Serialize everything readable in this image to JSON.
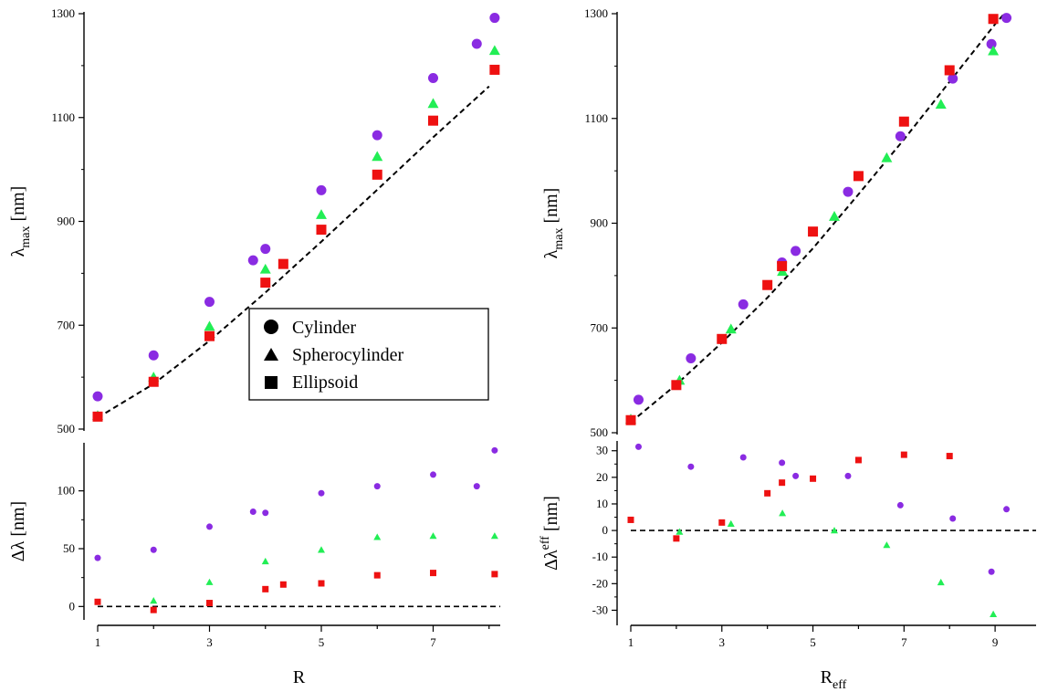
{
  "colors": {
    "cylinder": "#8a2be2",
    "spherocylinder": "#22ee55",
    "ellipsoid": "#ee1111",
    "axis": "#000000",
    "fit": "#000000"
  },
  "legend": {
    "placement": "center",
    "entries": [
      {
        "label": "Cylinder",
        "marker": "circle"
      },
      {
        "label": "Spherocylinder",
        "marker": "triangle"
      },
      {
        "label": "Ellipsoid",
        "marker": "square"
      }
    ]
  },
  "chart_data": [
    {
      "id": "left-top",
      "type": "scatter",
      "xlim": [
        1,
        8.2
      ],
      "ylim": [
        500,
        1300
      ],
      "yticks": [
        500,
        700,
        900,
        1100,
        1300
      ],
      "ylabel_main": "λ",
      "ylabel_sub": "max",
      "ylabel_rest": " [nm]",
      "series": [
        {
          "name": "Cylinder",
          "marker": "circle",
          "points": [
            [
              1,
              563
            ],
            [
              2,
              642
            ],
            [
              3,
              745
            ],
            [
              3.78,
              825
            ],
            [
              4,
              847
            ],
            [
              5,
              960
            ],
            [
              6,
              1066
            ],
            [
              7,
              1176
            ],
            [
              7.78,
              1242
            ],
            [
              8.1,
              1292
            ]
          ]
        },
        {
          "name": "Spherocylinder",
          "marker": "triangle",
          "points": [
            [
              1,
              526
            ],
            [
              2,
              600
            ],
            [
              3,
              698
            ],
            [
              4,
              808
            ],
            [
              5,
              913
            ],
            [
              6,
              1025
            ],
            [
              7,
              1127
            ],
            [
              8.1,
              1229
            ]
          ]
        },
        {
          "name": "Ellipsoid",
          "marker": "square",
          "points": [
            [
              1,
              524
            ],
            [
              2,
              591
            ],
            [
              3,
              679
            ],
            [
              4,
              782
            ],
            [
              4.32,
              818
            ],
            [
              5,
              884
            ],
            [
              6,
              990
            ],
            [
              7,
              1094
            ],
            [
              8.1,
              1192
            ]
          ]
        }
      ],
      "fit": [
        [
          1,
          522
        ],
        [
          2,
          587
        ],
        [
          3,
          670
        ],
        [
          4,
          763
        ],
        [
          5,
          861
        ],
        [
          6,
          961
        ],
        [
          7,
          1062
        ],
        [
          8,
          1160
        ]
      ]
    },
    {
      "id": "left-bottom",
      "type": "scatter",
      "xlim": [
        1,
        8.2
      ],
      "ylim": [
        -10,
        140
      ],
      "xticks": [
        1,
        3,
        5,
        7
      ],
      "yticks": [
        0,
        50,
        100
      ],
      "xlabel": "R",
      "ylabel_main": "Δλ",
      "ylabel_rest": " [nm]",
      "series": [
        {
          "name": "Cylinder",
          "marker": "circle",
          "points": [
            [
              1,
              42
            ],
            [
              2,
              49
            ],
            [
              3,
              69
            ],
            [
              3.78,
              82
            ],
            [
              4,
              81
            ],
            [
              5,
              98
            ],
            [
              6,
              104
            ],
            [
              7,
              114
            ],
            [
              7.78,
              104
            ],
            [
              8.1,
              135
            ]
          ]
        },
        {
          "name": "Spherocylinder",
          "marker": "triangle",
          "points": [
            [
              2,
              5
            ],
            [
              3,
              21
            ],
            [
              4,
              39
            ],
            [
              5,
              49
            ],
            [
              6,
              60
            ],
            [
              7,
              61
            ],
            [
              8.1,
              61
            ]
          ]
        },
        {
          "name": "Ellipsoid",
          "marker": "square",
          "points": [
            [
              1,
              4
            ],
            [
              2,
              -3
            ],
            [
              3,
              3
            ],
            [
              4,
              15
            ],
            [
              4.32,
              19
            ],
            [
              5,
              20
            ],
            [
              6,
              27
            ],
            [
              7,
              29
            ],
            [
              8.1,
              28
            ]
          ]
        }
      ],
      "zero_line": 0
    },
    {
      "id": "right-top",
      "type": "scatter",
      "xlim": [
        1,
        9.9
      ],
      "ylim": [
        500,
        1300
      ],
      "yticks": [
        500,
        700,
        900,
        1100,
        1300
      ],
      "ylabel_main": "λ",
      "ylabel_sub": "max",
      "ylabel_rest": " [nm]",
      "series": [
        {
          "name": "Cylinder",
          "marker": "circle",
          "points": [
            [
              1.17,
              563
            ],
            [
              2.32,
              642
            ],
            [
              3.47,
              745
            ],
            [
              4.32,
              825
            ],
            [
              4.62,
              847
            ],
            [
              5.77,
              960
            ],
            [
              6.92,
              1066
            ],
            [
              8.07,
              1176
            ],
            [
              8.92,
              1242
            ],
            [
              9.25,
              1292
            ]
          ]
        },
        {
          "name": "Spherocylinder",
          "marker": "triangle",
          "points": [
            [
              1,
              526
            ],
            [
              2.07,
              600
            ],
            [
              3.2,
              698
            ],
            [
              4.33,
              808
            ],
            [
              5.47,
              913
            ],
            [
              6.62,
              1025
            ],
            [
              7.81,
              1127
            ],
            [
              8.96,
              1229
            ]
          ]
        },
        {
          "name": "Ellipsoid",
          "marker": "square",
          "points": [
            [
              1,
              524
            ],
            [
              2,
              591
            ],
            [
              3,
              679
            ],
            [
              4,
              782
            ],
            [
              4.32,
              818
            ],
            [
              5,
              884
            ],
            [
              6,
              990
            ],
            [
              7,
              1094
            ],
            [
              8,
              1192
            ],
            [
              8.96,
              1290
            ]
          ]
        }
      ],
      "fit": [
        [
          1,
          520
        ],
        [
          2,
          592
        ],
        [
          3,
          672
        ],
        [
          4,
          758
        ],
        [
          5,
          852
        ],
        [
          6,
          955
        ],
        [
          7,
          1060
        ],
        [
          8,
          1170
        ],
        [
          9,
          1280
        ],
        [
          9.2,
          1300
        ]
      ]
    },
    {
      "id": "right-bottom",
      "type": "scatter",
      "xlim": [
        1,
        9.9
      ],
      "ylim": [
        -35,
        33
      ],
      "xticks": [
        1,
        3,
        5,
        7,
        9
      ],
      "yticks": [
        -30,
        -20,
        -10,
        0,
        10,
        20,
        30
      ],
      "xlabel_main": "R",
      "xlabel_sub": "eff",
      "ylabel_main": "Δλ",
      "ylabel_sup": "eff",
      "ylabel_rest": " [nm]",
      "series": [
        {
          "name": "Cylinder",
          "marker": "circle",
          "points": [
            [
              1.17,
              31.5
            ],
            [
              2.32,
              24
            ],
            [
              3.47,
              27.5
            ],
            [
              4.32,
              25.5
            ],
            [
              4.62,
              20.5
            ],
            [
              5.77,
              20.5
            ],
            [
              6.92,
              9.5
            ],
            [
              8.07,
              4.5
            ],
            [
              8.92,
              -15.5
            ],
            [
              9.25,
              8
            ]
          ]
        },
        {
          "name": "Spherocylinder",
          "marker": "triangle",
          "points": [
            [
              2.07,
              -0.5
            ],
            [
              3.2,
              2.5
            ],
            [
              4.33,
              6.5
            ],
            [
              5.47,
              0
            ],
            [
              6.62,
              -5.5
            ],
            [
              7.81,
              -19.5
            ],
            [
              8.96,
              -31.5
            ]
          ]
        },
        {
          "name": "Ellipsoid",
          "marker": "square",
          "points": [
            [
              1,
              4
            ],
            [
              2,
              -3
            ],
            [
              3,
              3
            ],
            [
              4,
              14
            ],
            [
              4.32,
              18
            ],
            [
              5,
              19.5
            ],
            [
              6,
              26.5
            ],
            [
              7,
              28.5
            ],
            [
              8,
              28
            ]
          ]
        }
      ],
      "zero_line": 0
    }
  ]
}
